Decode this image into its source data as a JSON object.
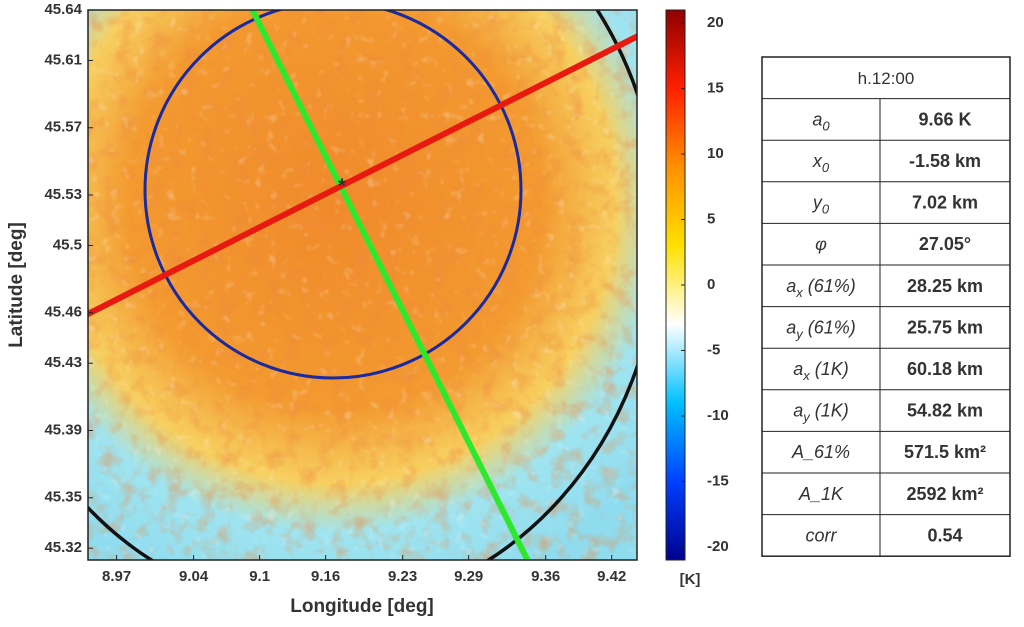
{
  "chart_data": {
    "type": "heatmap",
    "xlabel": "Longitude [deg]",
    "ylabel": "Latitude [deg]",
    "xlim": [
      8.944,
      9.443
    ],
    "xticks": [
      8.97,
      9.04,
      9.1,
      9.16,
      9.23,
      9.29,
      9.36,
      9.42
    ],
    "ylim": [
      45.313,
      45.64
    ],
    "yticks": [
      45.32,
      45.35,
      45.39,
      45.43,
      45.46,
      45.5,
      45.53,
      45.57,
      45.61,
      45.64
    ],
    "colorbar": {
      "label": "[K]",
      "lim": [
        -21,
        21
      ],
      "ticks": [
        20,
        15,
        10,
        5,
        0,
        -5,
        -10,
        -15,
        -20
      ],
      "colors": [
        "#00008f",
        "#0040ff",
        "#00c0ff",
        "#ffffff",
        "#ffe000",
        "#ff9000",
        "#ff2000",
        "#8f0000"
      ]
    }
  },
  "table": {
    "title": "h.12:00",
    "rows": [
      {
        "symbol": "a",
        "sub": "0",
        "suffix": "",
        "value": "9.66 K"
      },
      {
        "symbol": "x",
        "sub": "0",
        "suffix": "",
        "value": "-1.58 km"
      },
      {
        "symbol": "y",
        "sub": "0",
        "suffix": "",
        "value": "7.02 km"
      },
      {
        "symbol": "φ",
        "sub": "",
        "suffix": "",
        "value": "27.05°"
      },
      {
        "symbol": "a",
        "sub": "x",
        "suffix": " (61%)",
        "value": "28.25 km"
      },
      {
        "symbol": "a",
        "sub": "y",
        "suffix": " (61%)",
        "value": "25.75 km"
      },
      {
        "symbol": "a",
        "sub": "x",
        "suffix": " (1K)",
        "value": "60.18 km"
      },
      {
        "symbol": "a",
        "sub": "y",
        "suffix": " (1K)",
        "value": "54.82 km"
      },
      {
        "symbol": "A_61%",
        "sub": "",
        "suffix": "",
        "value": "571.5 km²"
      },
      {
        "symbol": "A_1K",
        "sub": "",
        "suffix": "",
        "value": "2592 km²"
      },
      {
        "symbol": "corr",
        "sub": "",
        "suffix": "",
        "value": "0.54"
      }
    ]
  }
}
